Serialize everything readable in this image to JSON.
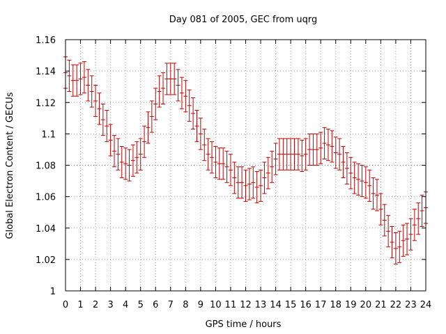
{
  "chart_data": {
    "type": "scatter",
    "title": "Day 081 of 2005, GEC from uqrg",
    "xlabel": "GPS time / hours",
    "ylabel": "Global Electron Content / GECUs",
    "xlim": [
      0,
      24
    ],
    "ylim": [
      1.0,
      1.16
    ],
    "xticks": [
      "0",
      "1",
      "2",
      "3",
      "4",
      "5",
      "6",
      "7",
      "8",
      "9",
      "10",
      "11",
      "12",
      "13",
      "14",
      "15",
      "16",
      "17",
      "18",
      "19",
      "20",
      "21",
      "22",
      "23",
      "24"
    ],
    "yticks": [
      "1",
      "1.02",
      "1.04",
      "1.06",
      "1.08",
      "1.1",
      "1.12",
      "1.14",
      "1.16"
    ],
    "grid": true,
    "color": "#c00000",
    "error": 0.01,
    "series": [
      {
        "name": "GEC",
        "x": [
          0,
          0.25,
          0.5,
          0.75,
          1,
          1.25,
          1.5,
          1.75,
          2,
          2.25,
          2.5,
          2.75,
          3,
          3.25,
          3.5,
          3.75,
          4,
          4.25,
          4.5,
          4.75,
          5,
          5.25,
          5.5,
          5.75,
          6,
          6.25,
          6.5,
          6.75,
          7,
          7.25,
          7.5,
          7.75,
          8,
          8.25,
          8.5,
          8.75,
          9,
          9.25,
          9.5,
          9.75,
          10,
          10.25,
          10.5,
          10.75,
          11,
          11.25,
          11.5,
          11.75,
          12,
          12.25,
          12.5,
          12.75,
          13,
          13.25,
          13.5,
          13.75,
          14,
          14.25,
          14.5,
          14.75,
          15,
          15.25,
          15.5,
          15.75,
          16,
          16.25,
          16.5,
          16.75,
          17,
          17.25,
          17.5,
          17.75,
          18,
          18.25,
          18.5,
          18.75,
          19,
          19.25,
          19.5,
          19.75,
          20,
          20.25,
          20.5,
          20.75,
          21,
          21.25,
          21.5,
          21.75,
          22,
          22.25,
          22.5,
          22.75,
          23,
          23.25,
          23.5,
          23.75,
          24
        ],
        "y": [
          1.139,
          1.137,
          1.134,
          1.134,
          1.135,
          1.136,
          1.131,
          1.127,
          1.121,
          1.116,
          1.109,
          1.105,
          1.096,
          1.089,
          1.087,
          1.082,
          1.081,
          1.08,
          1.083,
          1.085,
          1.087,
          1.095,
          1.104,
          1.111,
          1.119,
          1.127,
          1.129,
          1.135,
          1.135,
          1.135,
          1.131,
          1.126,
          1.124,
          1.118,
          1.113,
          1.105,
          1.1,
          1.093,
          1.087,
          1.085,
          1.082,
          1.081,
          1.081,
          1.079,
          1.077,
          1.072,
          1.069,
          1.069,
          1.067,
          1.068,
          1.069,
          1.066,
          1.067,
          1.072,
          1.075,
          1.079,
          1.084,
          1.087,
          1.087,
          1.087,
          1.087,
          1.087,
          1.087,
          1.086,
          1.087,
          1.09,
          1.09,
          1.09,
          1.091,
          1.094,
          1.093,
          1.092,
          1.088,
          1.087,
          1.082,
          1.078,
          1.075,
          1.072,
          1.071,
          1.07,
          1.069,
          1.067,
          1.062,
          1.061,
          1.052,
          1.045,
          1.038,
          1.031,
          1.027,
          1.028,
          1.032,
          1.033,
          1.036,
          1.042,
          1.046,
          1.051,
          1.053
        ]
      }
    ]
  }
}
